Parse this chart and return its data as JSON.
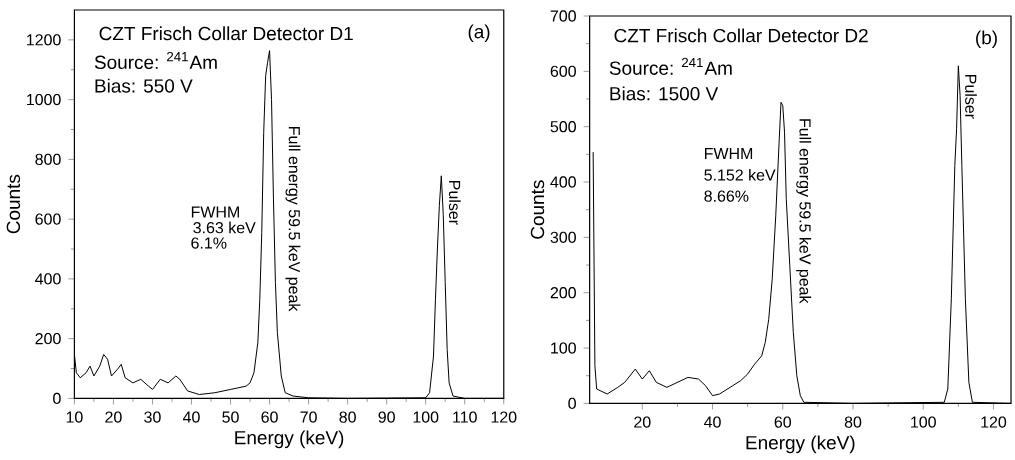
{
  "chart_data": [
    {
      "type": "line",
      "title": "CZT Frisch Collar Detector D1",
      "xlabel": "Energy (keV)",
      "ylabel": "Counts",
      "color": "#000000",
      "x": [
        10,
        10.5,
        11.5,
        13,
        14,
        15,
        16.5,
        17.5,
        18.5,
        19.5,
        21,
        22,
        23,
        25,
        27,
        29,
        30,
        32,
        34,
        36,
        37,
        39,
        42,
        46,
        50,
        54,
        55,
        56,
        57,
        57.5,
        58,
        58.5,
        59,
        59.5,
        60,
        60.5,
        61,
        61.5,
        62,
        63,
        64,
        66,
        70,
        80,
        100,
        101,
        102,
        102.5,
        103,
        103.5,
        104,
        104.5,
        105,
        105.5,
        106,
        107,
        110,
        120
      ],
      "values": [
        147,
        86,
        69,
        86,
        108,
        75,
        108,
        147,
        131,
        75,
        97,
        114,
        69,
        52,
        64,
        41,
        30,
        64,
        52,
        75,
        64,
        25,
        13,
        19,
        30,
        41,
        52,
        86,
        187,
        332,
        555,
        890,
        1080,
        1125,
        1164,
        1000,
        667,
        388,
        220,
        75,
        19,
        8,
        2,
        0,
        2,
        19,
        142,
        332,
        500,
        645,
        745,
        615,
        388,
        164,
        52,
        8,
        0,
        0
      ],
      "xlim": [
        10,
        120
      ],
      "ylim": [
        0,
        1300
      ],
      "xticks": [
        10,
        20,
        30,
        40,
        50,
        60,
        70,
        80,
        90,
        100,
        110,
        120
      ],
      "yticks": [
        0,
        200,
        400,
        600,
        800,
        1000,
        1200
      ],
      "annotations": [
        "Source: $^{241}$Am",
        "Bias: 550 V",
        "(a)",
        "FWHM",
        "3.63 keV",
        "6.1%",
        "Full energy 59.5 keV peak",
        "Pulser"
      ]
    },
    {
      "type": "line",
      "title": "CZT Frisch Collar Detector D2",
      "xlabel": "Energy (keV)",
      "ylabel": "Counts",
      "color": "#000000",
      "x": [
        6,
        6.5,
        7,
        10,
        13,
        15,
        18,
        20,
        22,
        24,
        27,
        30,
        33,
        36,
        38,
        40,
        42,
        45,
        48,
        50,
        52,
        54,
        55,
        56,
        57,
        58,
        59,
        59.5,
        60,
        60.5,
        61,
        62,
        63,
        64,
        65,
        66,
        80,
        106,
        107,
        108,
        109,
        109.5,
        110,
        110.5,
        111,
        112,
        113,
        114,
        125
      ],
      "values": [
        454,
        68,
        26,
        17,
        29,
        38,
        62,
        44,
        59,
        38,
        29,
        38,
        47,
        44,
        32,
        14,
        17,
        29,
        41,
        53,
        71,
        86,
        110,
        152,
        225,
        339,
        478,
        544,
        538,
        490,
        369,
        249,
        128,
        50,
        14,
        2,
        0,
        2,
        26,
        189,
        430,
        496,
        610,
        556,
        430,
        189,
        38,
        2,
        0
      ],
      "xlim": [
        5,
        125
      ],
      "ylim": [
        0,
        700
      ],
      "xticks": [
        20,
        40,
        60,
        80,
        100,
        120
      ],
      "yticks": [
        0,
        100,
        200,
        300,
        400,
        500,
        600,
        700
      ],
      "annotations": [
        "Source: $^{241}$Am",
        "Bias: 1500 V",
        "(b)",
        "FWHM",
        "5.152 keV",
        "8.66%",
        "Full energy 59.5 keV peak",
        "Pulser"
      ]
    }
  ]
}
